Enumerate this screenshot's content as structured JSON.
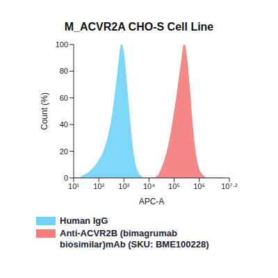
{
  "chart_data": {
    "type": "area",
    "title": "M_ACVR2A CHO-S Cell Line",
    "x_label": "APC-A",
    "y_label": "Count (%)",
    "log": "x",
    "legend": "bottom left",
    "grid": false,
    "x": [
      10,
      12.59,
      15.85,
      19.95,
      25.12,
      31.62,
      39.81,
      50.12,
      63.1,
      79.43,
      100,
      125.9,
      158.5,
      199.5,
      251.2,
      316.2,
      398.1,
      501.2,
      631,
      794.3,
      1000,
      1259,
      1585,
      1995,
      2512,
      3162,
      3981,
      5012,
      6310,
      7943,
      10000,
      12590,
      15850,
      19950,
      25120,
      31620,
      39810,
      50120,
      63100,
      79430,
      100000,
      125900,
      158500,
      199500,
      251200,
      316200,
      398100,
      501200,
      631000,
      794300,
      1000000,
      1259000,
      1585000,
      1995000,
      2512000,
      3162000,
      3981000,
      5012000,
      6310000,
      7943000,
      10000000
    ],
    "series": [
      {
        "name": "Human IgG",
        "color": "#6fd3f7",
        "values": [
          0,
          0,
          0,
          1,
          2,
          3,
          4,
          6,
          8,
          10,
          13,
          16,
          20,
          26,
          33,
          42,
          55,
          70,
          86,
          100,
          92,
          72,
          50,
          30,
          15,
          7,
          3,
          1,
          0,
          0,
          0,
          0,
          0,
          0,
          0,
          0,
          0,
          0,
          0,
          0,
          0,
          0,
          0,
          0,
          0,
          0,
          0,
          0,
          0,
          0,
          0,
          0,
          0,
          0,
          0,
          0,
          0,
          0,
          0,
          0,
          0
        ]
      },
      {
        "name": "Anti-ACVR2B (bimagrumab biosimilar)mAb (SKU: BME100228)",
        "color": "#f47b7b",
        "values": [
          0,
          0,
          0,
          0,
          0,
          0,
          0,
          0,
          0,
          0,
          0,
          0,
          0,
          0,
          0,
          0,
          0,
          0,
          0,
          0,
          0,
          0,
          0,
          0,
          0,
          0,
          0,
          0,
          0,
          0,
          0,
          0,
          0,
          1,
          3,
          7,
          12,
          18,
          26,
          36,
          48,
          60,
          74,
          88,
          100,
          90,
          70,
          46,
          26,
          13,
          6,
          3,
          1,
          0,
          0,
          0,
          0,
          0,
          0,
          0,
          0
        ]
      }
    ],
    "xlim": [
      10,
      15848932
    ],
    "xticks": [
      {
        "value": 10,
        "label": "10¹"
      },
      {
        "value": 100,
        "label": "10²"
      },
      {
        "value": 1000,
        "label": "10³"
      },
      {
        "value": 10000,
        "label": "10⁴"
      },
      {
        "value": 100000,
        "label": "10⁵"
      },
      {
        "value": 1000000,
        "label": "10⁶"
      },
      {
        "value": 15848932,
        "label": "10⁷·²"
      }
    ],
    "ylim": [
      0,
      100
    ],
    "yticks": [
      0,
      20,
      40,
      60,
      80,
      100
    ]
  }
}
